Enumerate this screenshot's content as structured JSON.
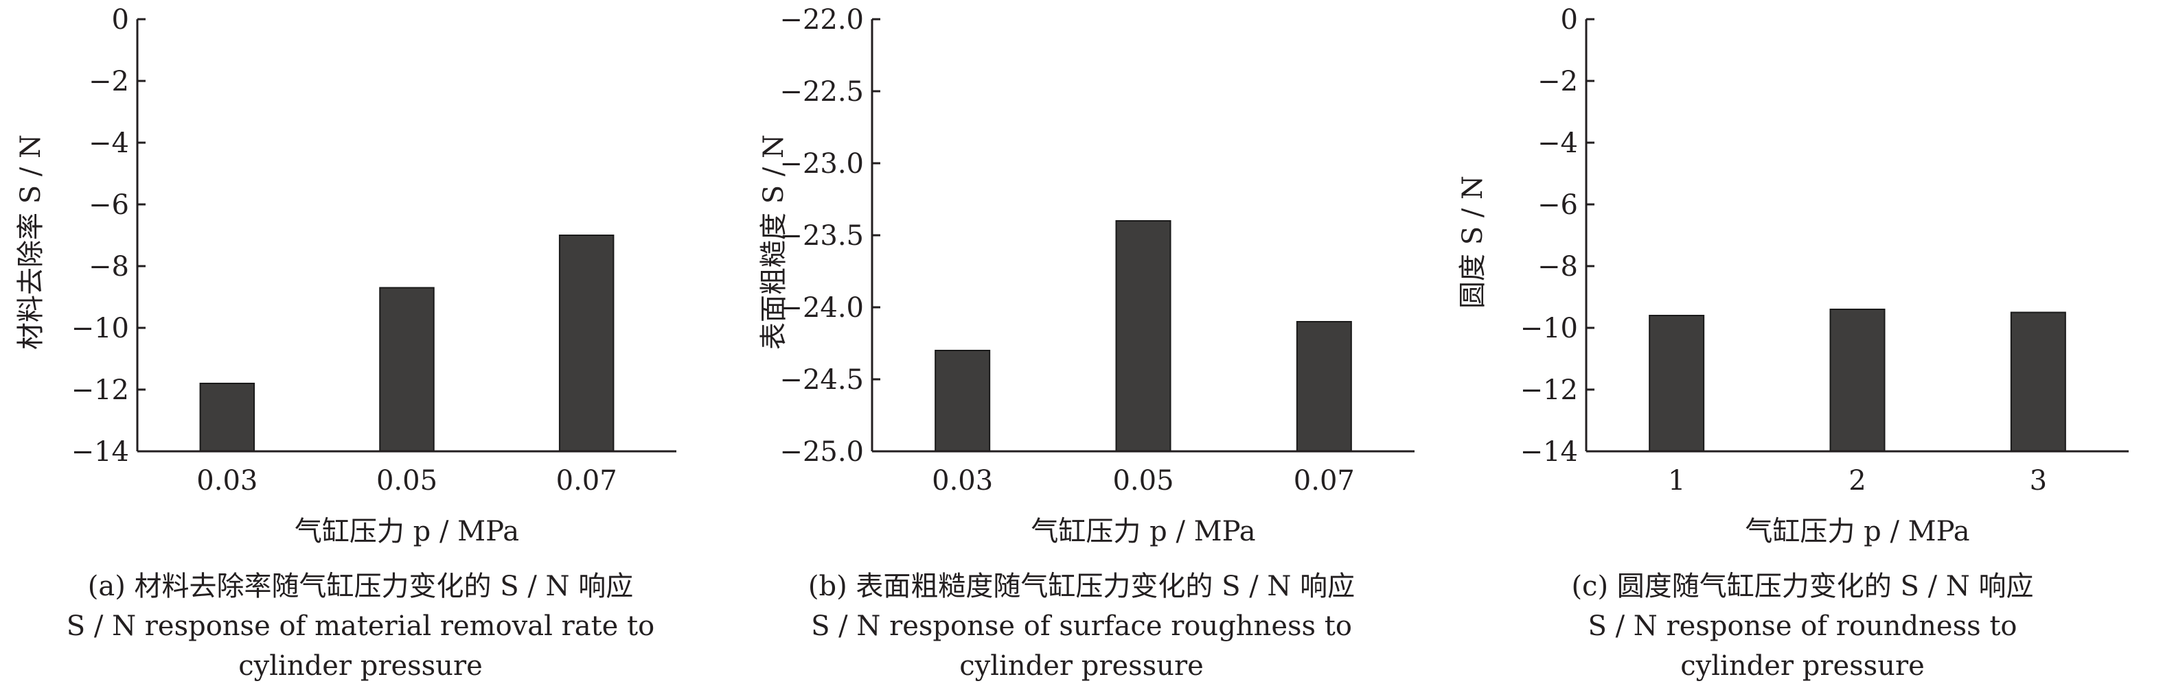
{
  "chart_data": [
    {
      "type": "bar",
      "categories": [
        "0.03",
        "0.05",
        "0.07"
      ],
      "values": [
        -11.8,
        -8.7,
        -7.0
      ],
      "yticks": [
        "0",
        "−2",
        "−4",
        "−6",
        "−8",
        "−10",
        "−12",
        "−14"
      ],
      "ylim": [
        -14,
        0
      ],
      "ylabel": "材料去除率 S / N",
      "xlabel": "气缸压力 p / MPa",
      "caption_line1": "(a) 材料去除率随气缸压力变化的 S / N 响应",
      "caption_line2": "S / N response of material removal rate to",
      "caption_line3": "cylinder pressure",
      "bar_color": "#3e3d3c",
      "grid": false
    },
    {
      "type": "bar",
      "categories": [
        "0.03",
        "0.05",
        "0.07"
      ],
      "values": [
        -24.3,
        -23.4,
        -24.1
      ],
      "yticks": [
        "−22.0",
        "−22.5",
        "−23.0",
        "−23.5",
        "−24.0",
        "−24.5",
        "−25.0"
      ],
      "ylim": [
        -25,
        -22
      ],
      "ylabel": "表面粗糙度 S / N",
      "xlabel": "气缸压力 p / MPa",
      "caption_line1": "(b) 表面粗糙度随气缸压力变化的 S / N 响应",
      "caption_line2": "S / N response of surface roughness to",
      "caption_line3": "cylinder pressure",
      "bar_color": "#3e3d3c",
      "grid": false
    },
    {
      "type": "bar",
      "categories": [
        "1",
        "2",
        "3"
      ],
      "values": [
        -9.6,
        -9.4,
        -9.5
      ],
      "yticks": [
        "0",
        "−2",
        "−4",
        "−6",
        "−8",
        "−10",
        "−12",
        "−14"
      ],
      "ylim": [
        -14,
        0
      ],
      "ylabel": "圆度 S / N",
      "xlabel": "气缸压力 p / MPa",
      "caption_line1": "(c) 圆度随气缸压力变化的 S / N 响应",
      "caption_line2": "S / N response of roundness to",
      "caption_line3": "cylinder pressure",
      "bar_color": "#3e3d3c",
      "grid": false
    }
  ]
}
